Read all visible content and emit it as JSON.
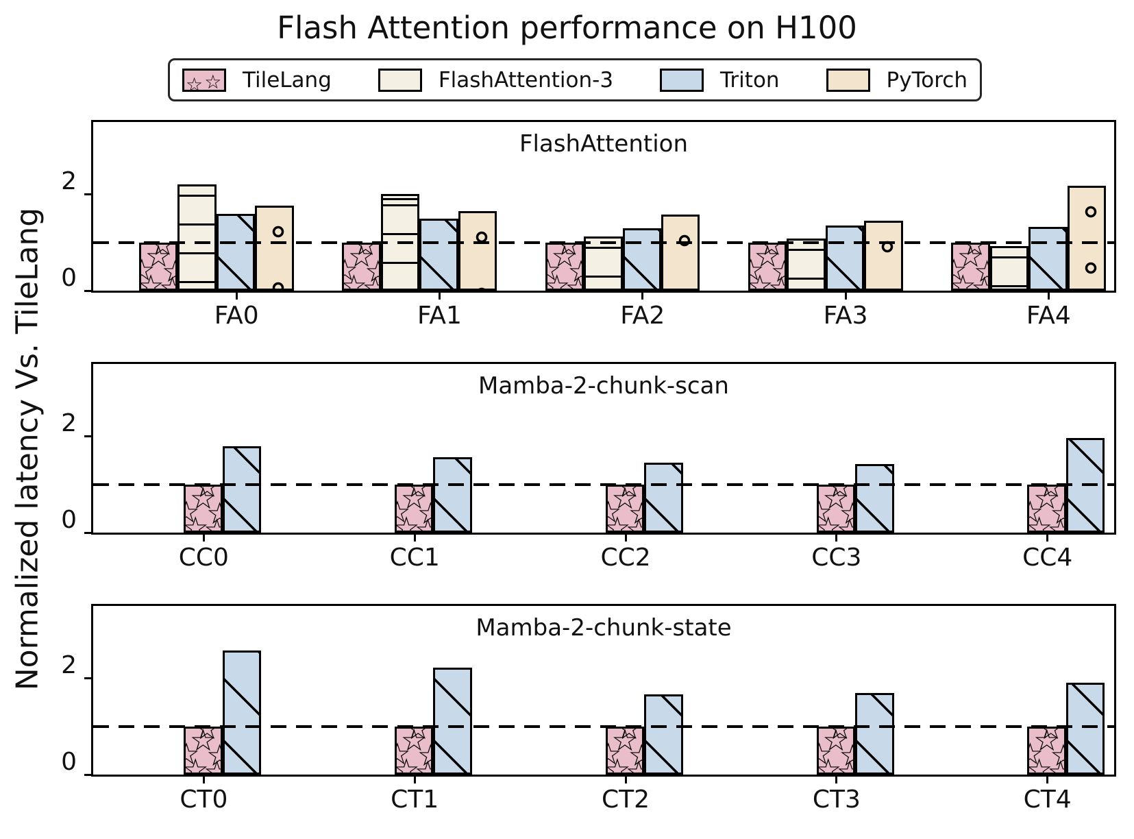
{
  "figure": {
    "title": "Flash Attention performance on H100",
    "ylabel": "Normalized latency Vs. TileLang"
  },
  "legend": {
    "items": [
      {
        "label": "TileLang",
        "color": "#e9bdca",
        "hatch": "star"
      },
      {
        "label": "FlashAttention-3",
        "color": "#f5f0e4",
        "hatch": "hline"
      },
      {
        "label": "Triton",
        "color": "#c8daea",
        "hatch": "diag"
      },
      {
        "label": "PyTorch",
        "color": "#f3e5cd",
        "hatch": "circle"
      }
    ]
  },
  "chart_data": {
    "type": "bar",
    "title": "Flash Attention performance on H100",
    "ylabel": "Normalized latency Vs. TileLang",
    "ylim": [
      0,
      3.5
    ],
    "yticks": [
      0,
      2
    ],
    "reference_line": 1.0,
    "reference_line_style": "dashed-black",
    "grid": false,
    "legend_position": "top",
    "legend_entries": [
      "TileLang",
      "FlashAttention-3",
      "Triton",
      "PyTorch"
    ],
    "subplots": [
      {
        "panel_title": "FlashAttention",
        "categories": [
          "FA0",
          "FA1",
          "FA2",
          "FA3",
          "FA4"
        ],
        "series": [
          {
            "name": "TileLang",
            "values": [
              1.0,
              1.0,
              1.0,
              1.0,
              1.0
            ]
          },
          {
            "name": "FlashAttention-3",
            "values": [
              2.2,
              2.0,
              1.12,
              1.08,
              0.93
            ]
          },
          {
            "name": "Triton",
            "values": [
              1.6,
              1.5,
              1.3,
              1.35,
              1.33
            ]
          },
          {
            "name": "PyTorch",
            "values": [
              1.77,
              1.65,
              1.58,
              1.45,
              2.17
            ]
          }
        ]
      },
      {
        "panel_title": "Mamba-2-chunk-scan",
        "categories": [
          "CC0",
          "CC1",
          "CC2",
          "CC3",
          "CC4"
        ],
        "series": [
          {
            "name": "TileLang",
            "values": [
              1.0,
              1.0,
              1.0,
              1.0,
              1.0
            ]
          },
          {
            "name": "Triton",
            "values": [
              1.8,
              1.56,
              1.45,
              1.43,
              1.97
            ]
          }
        ]
      },
      {
        "panel_title": "Mamba-2-chunk-state",
        "categories": [
          "CT0",
          "CT1",
          "CT2",
          "CT3",
          "CT4"
        ],
        "series": [
          {
            "name": "TileLang",
            "values": [
              1.0,
              1.0,
              1.0,
              1.0,
              1.0
            ]
          },
          {
            "name": "Triton",
            "values": [
              2.58,
              2.22,
              1.66,
              1.69,
              1.91
            ]
          }
        ]
      }
    ]
  }
}
